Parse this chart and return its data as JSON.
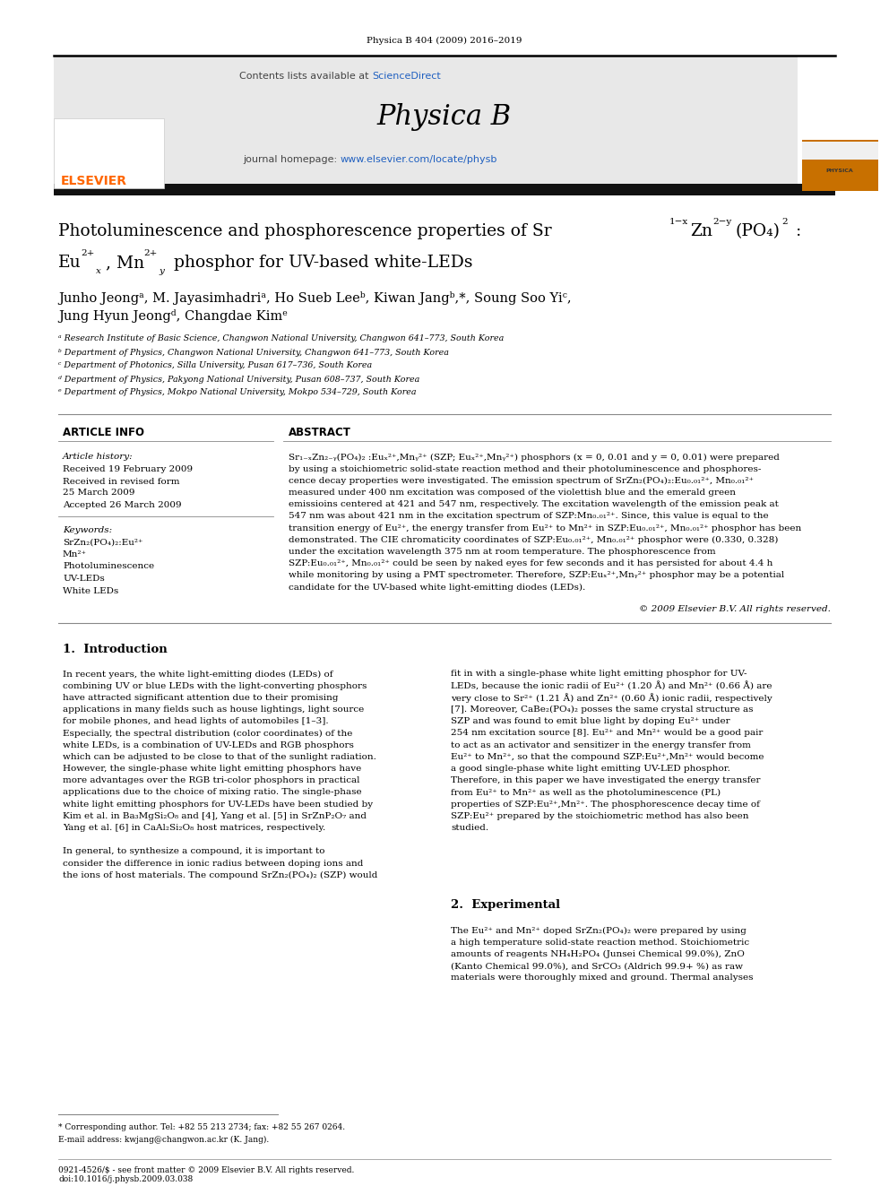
{
  "page_width": 9.92,
  "page_height": 13.23,
  "background": "#ffffff",
  "journal_ref": "Physica B 404 (2009) 2016–2019",
  "header_bg": "#e8e8e8",
  "contents_text": "Contents lists available at ",
  "sciencedirect_text": "ScienceDirect",
  "sciencedirect_color": "#2060c0",
  "journal_name": "Physica B",
  "journal_homepage_label": "journal homepage: ",
  "journal_url": "www.elsevier.com/locate/physb",
  "journal_url_color": "#2060c0",
  "elsevier_color": "#ff6600",
  "affiliations": [
    "ᵃ Research Institute of Basic Science, Changwon National University, Changwon 641–773, South Korea",
    "ᵇ Department of Physics, Changwon National University, Changwon 641–773, South Korea",
    "ᶜ Department of Photonics, Silla University, Pusan 617–736, South Korea",
    "ᵈ Department of Physics, Pakyong National University, Pusan 608–737, South Korea",
    "ᵉ Department of Physics, Mokpo National University, Mokpo 534–729, South Korea"
  ],
  "article_info_title": "ARTICLE INFO",
  "abstract_title": "ABSTRACT",
  "article_history_label": "Article history:",
  "received1": "Received 19 February 2009",
  "received2": "Received in revised form",
  "received2b": "25 March 2009",
  "accepted": "Accepted 26 March 2009",
  "keywords_label": "Keywords:",
  "keywords": [
    "SrZn₂(PO₄)₂:Eu²⁺",
    "Mn²⁺",
    "Photoluminescence",
    "UV-LEDs",
    "White LEDs"
  ],
  "copyright": "© 2009 Elsevier B.V. All rights reserved.",
  "intro_heading": "1.  Introduction",
  "experimental_heading": "2.  Experimental",
  "footnote1": "* Corresponding author. Tel: +82 55 213 2734; fax: +82 55 267 0264.",
  "footnote2": "E-mail address: kwjang@changwon.ac.kr (K. Jang).",
  "footer1": "0921-4526/$ - see front matter © 2009 Elsevier B.V. All rights reserved.",
  "footer2": "doi:10.1016/j.physb.2009.03.038",
  "abstract_lines": [
    "Sr₁₋ₓZn₂₋ᵧ(PO₄)₂ :Euₓ²⁺,Mnᵧ²⁺ (SZP; Euₓ²⁺,Mnᵧ²⁺) phosphors (x = 0, 0.01 and y = 0, 0.01) were prepared",
    "by using a stoichiometric solid-state reaction method and their photoluminescence and phosphores-",
    "cence decay properties were investigated. The emission spectrum of SrZn₂(PO₄)₂:Eu₀.₀₁²⁺, Mn₀.₀₁²⁺",
    "measured under 400 nm excitation was composed of the violettish blue and the emerald green",
    "emissioins centered at 421 and 547 nm, respectively. The excitation wavelength of the emission peak at",
    "547 nm was about 421 nm in the excitation spectrum of SZP:Mn₀.₀₁²⁺. Since, this value is equal to the",
    "transition energy of Eu²⁺, the energy transfer from Eu²⁺ to Mn²⁺ in SZP:Eu₀.₀₁²⁺, Mn₀.₀₁²⁺ phosphor has been",
    "demonstrated. The CIE chromaticity coordinates of SZP:Eu₀.₀₁²⁺, Mn₀.₀₁²⁺ phosphor were (0.330, 0.328)",
    "under the excitation wavelength 375 nm at room temperature. The phosphorescence from",
    "SZP:Eu₀.₀₁²⁺, Mn₀.₀₁²⁺ could be seen by naked eyes for few seconds and it has persisted for about 4.4 h",
    "while monitoring by using a PMT spectrometer. Therefore, SZP:Euₓ²⁺,Mnᵧ²⁺ phosphor may be a potential",
    "candidate for the UV-based white light-emitting diodes (LEDs)."
  ],
  "intro_col1_lines": [
    "In recent years, the white light-emitting diodes (LEDs) of",
    "combining UV or blue LEDs with the light-converting phosphors",
    "have attracted significant attention due to their promising",
    "applications in many fields such as house lightings, light source",
    "for mobile phones, and head lights of automobiles [1–3].",
    "Especially, the spectral distribution (color coordinates) of the",
    "white LEDs, is a combination of UV-LEDs and RGB phosphors",
    "which can be adjusted to be close to that of the sunlight radiation.",
    "However, the single-phase white light emitting phosphors have",
    "more advantages over the RGB tri-color phosphors in practical",
    "applications due to the choice of mixing ratio. The single-phase",
    "white light emitting phosphors for UV-LEDs have been studied by",
    "Kim et al. in Ba₃MgSi₂O₈ and [4], Yang et al. [5] in SrZnP₂O₇ and",
    "Yang et al. [6] in CaAl₂Si₂O₈ host matrices, respectively.",
    "",
    "In general, to synthesize a compound, it is important to",
    "consider the difference in ionic radius between doping ions and",
    "the ions of host materials. The compound SrZn₂(PO₄)₂ (SZP) would"
  ],
  "intro_col2_lines": [
    "fit in with a single-phase white light emitting phosphor for UV-",
    "LEDs, because the ionic radii of Eu²⁺ (1.20 Å) and Mn²⁺ (0.66 Å) are",
    "very close to Sr²⁺ (1.21 Å) and Zn²⁺ (0.60 Å) ionic radii, respectively",
    "[7]. Moreover, CaBe₂(PO₄)₂ posses the same crystal structure as",
    "SZP and was found to emit blue light by doping Eu²⁺ under",
    "254 nm excitation source [8]. Eu²⁺ and Mn²⁺ would be a good pair",
    "to act as an activator and sensitizer in the energy transfer from",
    "Eu²⁺ to Mn²⁺, so that the compound SZP:Eu²⁺,Mn²⁺ would become",
    "a good single-phase white light emitting UV-LED phosphor.",
    "Therefore, in this paper we have investigated the energy transfer",
    "from Eu²⁺ to Mn²⁺ as well as the photoluminescence (PL)",
    "properties of SZP:Eu²⁺,Mn²⁺. The phosphorescence decay time of",
    "SZP:Eu²⁺ prepared by the stoichiometric method has also been",
    "studied."
  ],
  "exp_lines": [
    "The Eu²⁺ and Mn²⁺ doped SrZn₂(PO₄)₂ were prepared by using",
    "a high temperature solid-state reaction method. Stoichiometric",
    "amounts of reagents NH₄H₂PO₄ (Junsei Chemical 99.0%), ZnO",
    "(Kanto Chemical 99.0%), and SrCO₃ (Aldrich 99.9+ %) as raw",
    "materials were thoroughly mixed and ground. Thermal analyses"
  ]
}
